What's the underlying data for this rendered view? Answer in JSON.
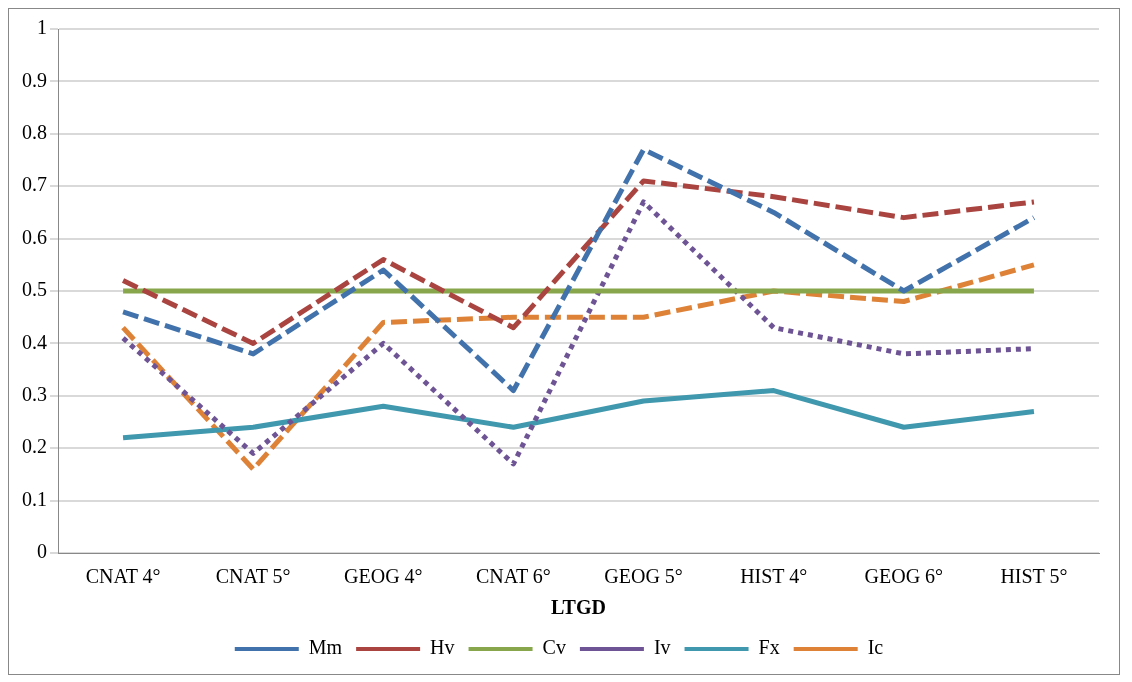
{
  "chart_data": {
    "type": "line",
    "xlabel": "LTGD",
    "categories": [
      "CNAT 4°",
      "CNAT 5°",
      "GEOG 4°",
      "CNAT 6°",
      "GEOG 5°",
      "HIST 4°",
      "GEOG 6°",
      "HIST 5°"
    ],
    "series": [
      {
        "name": "Mm",
        "color": "#4272ab",
        "line_style": "dashed",
        "values": [
          0.46,
          0.38,
          0.54,
          0.31,
          0.77,
          0.65,
          0.5,
          0.64
        ]
      },
      {
        "name": "Hv",
        "color": "#aa4440",
        "line_style": "dashed",
        "values": [
          0.52,
          0.4,
          0.56,
          0.43,
          0.71,
          0.68,
          0.64,
          0.67
        ]
      },
      {
        "name": "Cv",
        "color": "#88a74d",
        "line_style": "solid",
        "values": [
          0.5,
          0.5,
          0.5,
          0.5,
          0.5,
          0.5,
          0.5,
          0.5
        ]
      },
      {
        "name": "Iv",
        "color": "#6e5494",
        "line_style": "dotted",
        "values": [
          0.41,
          0.19,
          0.4,
          0.17,
          0.67,
          0.43,
          0.38,
          0.39
        ]
      },
      {
        "name": "Fx",
        "color": "#3f98ad",
        "line_style": "solid",
        "values": [
          0.22,
          0.24,
          0.28,
          0.24,
          0.29,
          0.31,
          0.24,
          0.27
        ]
      },
      {
        "name": "Ic",
        "color": "#dd8237",
        "line_style": "dashed",
        "values": [
          0.43,
          0.16,
          0.44,
          0.45,
          0.45,
          0.5,
          0.48,
          0.55
        ]
      }
    ],
    "ylim": [
      0,
      1
    ],
    "yticks": [
      0,
      0.1,
      0.2,
      0.3,
      0.4,
      0.5,
      0.6,
      0.7,
      0.8,
      0.9,
      1
    ],
    "grid": "y",
    "legend": "bottom",
    "marker": "none"
  }
}
